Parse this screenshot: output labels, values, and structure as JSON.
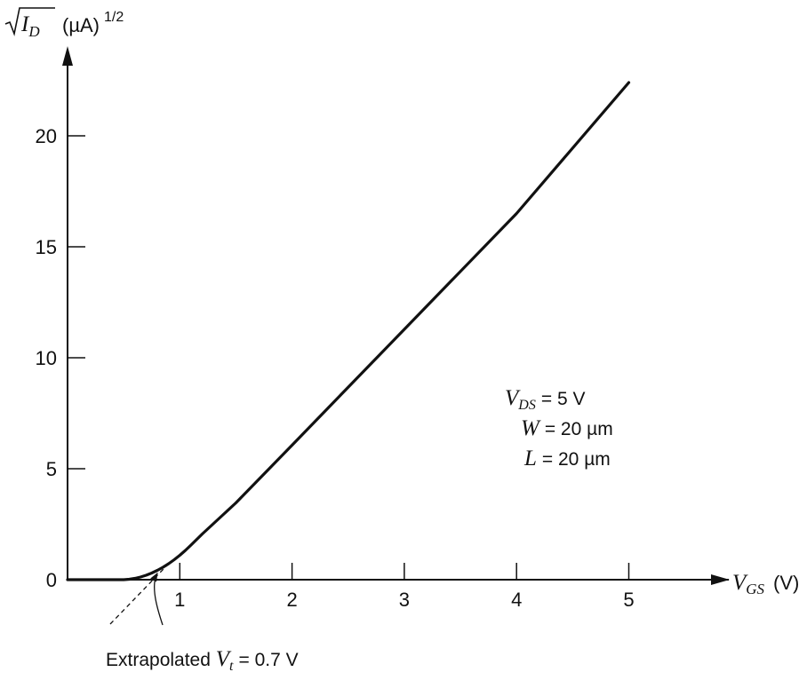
{
  "chart_data": {
    "type": "line",
    "ylabel": {
      "radicand": "I",
      "radicand_sub": "D",
      "unit": "(µA)",
      "exponent": "1/2"
    },
    "xlabel": {
      "symbol": "V",
      "sub": "GS",
      "unit": "(V)"
    },
    "xlim": [
      0,
      5.7
    ],
    "ylim": [
      0,
      24
    ],
    "x_ticks": [
      1,
      2,
      3,
      4,
      5
    ],
    "y_ticks": [
      0,
      5,
      10,
      15,
      20
    ],
    "x_tick_labels": [
      "1",
      "2",
      "3",
      "4",
      "5"
    ],
    "y_tick_labels": [
      "0",
      "5",
      "10",
      "15",
      "20"
    ],
    "series": [
      {
        "x": [
          0,
          0.25,
          0.5,
          0.55,
          0.6,
          0.65,
          0.7,
          0.75,
          0.8,
          0.85,
          0.9,
          0.95,
          1.0,
          1.05,
          1.1,
          1.2,
          1.5,
          2.0,
          3.0,
          4.0,
          5.0
        ],
        "y": [
          0,
          0,
          0,
          0.02,
          0.06,
          0.12,
          0.2,
          0.3,
          0.42,
          0.56,
          0.72,
          0.9,
          1.1,
          1.32,
          1.56,
          2.06,
          3.46,
          6.06,
          11.28,
          16.5,
          22.4
        ]
      }
    ],
    "extrapolation": {
      "x": [
        0.38,
        0.9
      ],
      "y": [
        -2.0,
        0.72
      ],
      "style": "dashed"
    },
    "annotations": {
      "extrapolated": {
        "text": "Extrapolated",
        "symbol": "V",
        "sub": "t",
        "value": "= 0.7 V",
        "points_to_x": 0.8
      },
      "params": [
        {
          "symbol": "V",
          "sub": "DS",
          "value": "= 5 V"
        },
        {
          "symbol": "W",
          "sub": "",
          "value": "= 20 µm"
        },
        {
          "symbol": "L",
          "sub": "",
          "value": "= 20 µm"
        }
      ]
    },
    "grid": false
  }
}
